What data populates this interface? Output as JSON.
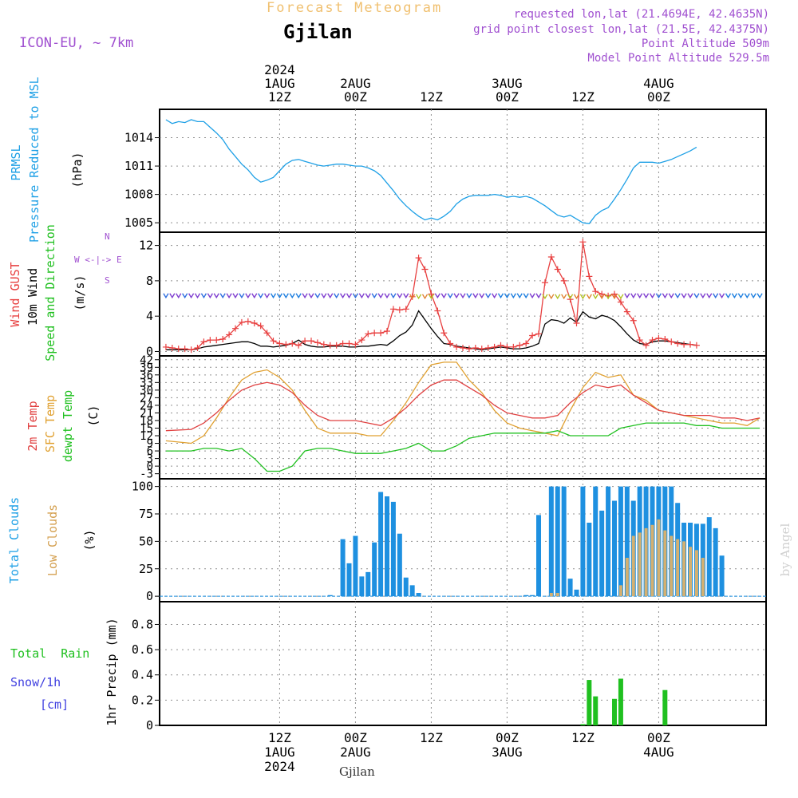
{
  "header": {
    "forecast_title": "Forecast Meteogram",
    "location": "Gjilan",
    "model": "ICON-EU, ~ 7km",
    "requested": "requested lon,lat (21.4694E, 42.4635N)",
    "grid_point": "grid point closest lon,lat (21.5E, 42.4375N)",
    "point_altitude": "Point Altitude 509m",
    "model_altitude": "Model Point Altitude 529.5m",
    "footer_location": "Gjilan",
    "credit": "by Angel"
  },
  "colors": {
    "pressure": "#1ea0e6",
    "gust": "#e84040",
    "wind10m": "#000000",
    "wind_dir": "#20c020",
    "temp2m": "#e04040",
    "sfc_temp": "#e0a030",
    "dewpt": "#20c020",
    "total_clouds": "#1e90e0",
    "low_clouds": "#d4b070",
    "rain": "#20c020",
    "snow": "#4040e0",
    "header_purple": "#a050d0",
    "title_orange": "#f0c070"
  },
  "time_axis": {
    "top_labels": [
      {
        "lines": [
          "2024",
          "1AUG",
          "12Z"
        ]
      },
      {
        "lines": [
          "2AUG",
          "00Z"
        ]
      },
      {
        "lines": [
          "12Z"
        ]
      },
      {
        "lines": [
          "3AUG",
          "00Z"
        ]
      },
      {
        "lines": [
          "12Z"
        ]
      },
      {
        "lines": [
          "4AUG",
          "00Z"
        ]
      }
    ],
    "bottom_labels": [
      {
        "lines": [
          "12Z",
          "1AUG",
          "2024"
        ]
      },
      {
        "lines": [
          "00Z",
          "2AUG"
        ]
      },
      {
        "lines": [
          "12Z"
        ]
      },
      {
        "lines": [
          "00Z",
          "3AUG"
        ]
      },
      {
        "lines": [
          "12Z"
        ]
      },
      {
        "lines": [
          "00Z",
          "4AUG"
        ]
      }
    ]
  },
  "panels": {
    "pressure": {
      "label_main": "PRMSL",
      "label_sub": "Pressure Reduced to MSL",
      "unit": "(hPa)"
    },
    "wind": {
      "label_gust": "Wind GUST",
      "label_10m": "10m Wind",
      "label_dir": "Speed and Direction",
      "unit": "(m/s)",
      "compass": [
        "N",
        "W <-|-> E",
        "S"
      ]
    },
    "temp": {
      "label_2m": "2m Temp",
      "label_sfc": "SFC Temp",
      "label_dew": "dewpt Temp",
      "unit": "(C)"
    },
    "clouds": {
      "label_total": "Total Clouds",
      "label_low": "Low Clouds",
      "unit": "(%)"
    },
    "precip": {
      "label_rain": "Total  Rain",
      "label_snow": "Snow/1h",
      "label_cm": "[cm]",
      "label_axis": "1hr Precip (mm)"
    }
  },
  "chart_data": [
    {
      "type": "line",
      "panel": "pressure",
      "title": "PRMSL Pressure Reduced to MSL",
      "ylabel": "(hPa)",
      "xlim_hours": [
        -19,
        77
      ],
      "ylim": [
        1004,
        1017
      ],
      "yticks": [
        1005,
        1008,
        1011,
        1014
      ],
      "x_hours": [
        -18,
        -17,
        -16,
        -15,
        -14,
        -13,
        -12,
        -11,
        -10,
        -9,
        -8,
        -7,
        -6,
        -5,
        -4,
        -3,
        -2,
        -1,
        0,
        1,
        2,
        3,
        4,
        5,
        6,
        7,
        8,
        9,
        10,
        11,
        12,
        13,
        14,
        15,
        16,
        17,
        18,
        19,
        20,
        21,
        22,
        23,
        24,
        25,
        26,
        27,
        28,
        29,
        30,
        31,
        32,
        33,
        34,
        35,
        36,
        37,
        38,
        39,
        40,
        41,
        42,
        43,
        44,
        45,
        46,
        47,
        48,
        49,
        50,
        51,
        52,
        53,
        54,
        55,
        56,
        57,
        58,
        59,
        60,
        61,
        62,
        63,
        64,
        65,
        66,
        67,
        68,
        69,
        70,
        71,
        72,
        73,
        74,
        75,
        76
      ],
      "series": [
        {
          "values": [
            1015.9,
            1015.5,
            1015.7,
            1015.6,
            1015.9,
            1015.7,
            1015.7,
            1015.1,
            1014.5,
            1013.8,
            1012.8,
            1012,
            1011.2,
            1010.6,
            1009.8,
            1009.3,
            1009.5,
            1009.8,
            1010.5,
            1011.2,
            1011.6,
            1011.7,
            1011.5,
            1011.3,
            1011.1,
            1011,
            1011.1,
            1011.2,
            1011.2,
            1011.1,
            1011,
            1011,
            1010.8,
            1010.5,
            1010,
            1009.2,
            1008.4,
            1007.5,
            1006.8,
            1006.2,
            1005.7,
            1005.3,
            1005.5,
            1005.3,
            1005.7,
            1006.2,
            1007,
            1007.5,
            1007.8,
            1007.9,
            1007.9,
            1007.9,
            1008,
            1007.9,
            1007.7,
            1007.8,
            1007.7,
            1007.8,
            1007.6,
            1007.2,
            1006.8,
            1006.3,
            1005.8,
            1005.6,
            1005.8,
            1005.4,
            1005,
            1004.9,
            1005.8,
            1006.3,
            1006.6,
            1007.5,
            1008.5,
            1009.6,
            1010.8,
            1011.4,
            1011.4,
            1011.4,
            1011.3,
            1011.5,
            1011.7,
            1012,
            1012.3,
            1012.6,
            1013
          ]
        }
      ]
    },
    {
      "type": "line",
      "panel": "wind",
      "title": "Wind GUST / 10m Wind Speed and Direction",
      "ylabel": "(m/s)",
      "xlim_hours": [
        -19,
        77
      ],
      "ylim": [
        -0.5,
        13.5
      ],
      "yticks": [
        0,
        4,
        8,
        12
      ],
      "x_hours": [
        -18,
        -17,
        -16,
        -15,
        -14,
        -13,
        -12,
        -11,
        -10,
        -9,
        -8,
        -7,
        -6,
        -5,
        -4,
        -3,
        -2,
        -1,
        0,
        1,
        2,
        3,
        4,
        5,
        6,
        7,
        8,
        9,
        10,
        11,
        12,
        13,
        14,
        15,
        16,
        17,
        18,
        19,
        20,
        21,
        22,
        23,
        24,
        25,
        26,
        27,
        28,
        29,
        30,
        31,
        32,
        33,
        34,
        35,
        36,
        37,
        38,
        39,
        40,
        41,
        42,
        43,
        44,
        45,
        46,
        47,
        48,
        49,
        50,
        51,
        52,
        53,
        54,
        55,
        56,
        57,
        58,
        59,
        60,
        61,
        62,
        63,
        64,
        65,
        66,
        67,
        68,
        69,
        70,
        71,
        72,
        73,
        74,
        75,
        76
      ],
      "series": [
        {
          "name": "Wind GUST",
          "values": [
            0.5,
            0.4,
            0.3,
            0.3,
            0.2,
            0.4,
            1.1,
            1.3,
            1.3,
            1.4,
            1.9,
            2.6,
            3.3,
            3.4,
            3.2,
            2.9,
            2.1,
            1.2,
            0.9,
            0.8,
            0.9,
            0.7,
            1.2,
            1.2,
            1.0,
            0.8,
            0.7,
            0.7,
            0.9,
            0.9,
            0.8,
            1.3,
            2.0,
            2.1,
            2.1,
            2.3,
            4.8,
            4.7,
            4.8,
            6.2,
            10.6,
            9.3,
            6.5,
            4.6,
            2.1,
            0.9,
            0.5,
            0.4,
            0.3,
            0.4,
            0.3,
            0.4,
            0.5,
            0.7,
            0.5,
            0.5,
            0.7,
            0.9,
            1.8,
            2.0,
            7.8,
            10.7,
            9.3,
            8.0,
            5.9,
            3.2,
            12.4,
            8.5,
            6.8,
            6.5,
            6.3,
            6.5,
            5.6,
            4.5,
            3.5,
            1.3,
            0.7,
            1.3,
            1.5,
            1.4,
            1.1,
            0.9,
            0.8,
            0.8,
            0.7
          ]
        },
        {
          "name": "10m Wind",
          "values": [
            0.2,
            0.2,
            0.2,
            0.2,
            0.2,
            0.3,
            0.5,
            0.6,
            0.7,
            0.8,
            0.9,
            1.0,
            1.1,
            1.1,
            0.9,
            0.6,
            0.6,
            0.5,
            0.6,
            0.7,
            0.9,
            1.3,
            0.8,
            0.6,
            0.5,
            0.5,
            0.6,
            0.6,
            0.6,
            0.5,
            0.5,
            0.6,
            0.6,
            0.7,
            0.8,
            0.7,
            1.2,
            1.8,
            2.2,
            3.0,
            4.6,
            3.6,
            2.6,
            1.7,
            0.9,
            0.8,
            0.6,
            0.5,
            0.4,
            0.3,
            0.2,
            0.3,
            0.4,
            0.5,
            0.4,
            0.3,
            0.3,
            0.4,
            0.6,
            0.9,
            3.1,
            3.6,
            3.5,
            3.2,
            3.8,
            3.3,
            4.5,
            3.9,
            3.7,
            4.1,
            3.9,
            3.5,
            2.8,
            2.0,
            1.3,
            0.9,
            0.8,
            1.1,
            1.2,
            1.2,
            1.1,
            1.0,
            0.9,
            0.8,
            0.7
          ]
        }
      ]
    },
    {
      "type": "line",
      "panel": "temp",
      "title": "2m Temp / SFC Temp / dewpt Temp",
      "ylabel": "(C)",
      "xlim_hours": [
        -19,
        77
      ],
      "ylim": [
        -5,
        43.5
      ],
      "yticks": [
        -3,
        0,
        3,
        6,
        9,
        12,
        15,
        18,
        21,
        24,
        27,
        30,
        33,
        36,
        39,
        42
      ],
      "x_hours": [
        -18,
        -14,
        -12,
        -10,
        -8,
        -6,
        -4,
        -2,
        0,
        2,
        4,
        6,
        8,
        10,
        12,
        14,
        16,
        18,
        20,
        22,
        24,
        26,
        28,
        30,
        32,
        34,
        36,
        38,
        40,
        42,
        44,
        46,
        48,
        50,
        52,
        54,
        56,
        58,
        60,
        62,
        64,
        66,
        68,
        70,
        72,
        74,
        76
      ],
      "series": [
        {
          "name": "2m Temp",
          "values": [
            14,
            14.5,
            17,
            21,
            26,
            30,
            32,
            33,
            32,
            29,
            24,
            20,
            18,
            18,
            18,
            17,
            16,
            19,
            23,
            28,
            32,
            34,
            34,
            31,
            28,
            24,
            21,
            20,
            19,
            19,
            20,
            25,
            29,
            32,
            31,
            32,
            28,
            25,
            22,
            21,
            20,
            20,
            20,
            19,
            19,
            18,
            19
          ]
        },
        {
          "name": "SFC Temp",
          "values": [
            10,
            9,
            12,
            19,
            27,
            34,
            37,
            38,
            35,
            30,
            22,
            15,
            13,
            13,
            13,
            12,
            12,
            18,
            25,
            33,
            40,
            41,
            41,
            34,
            29,
            22,
            17,
            15,
            14,
            13,
            12,
            22,
            31,
            37,
            35,
            36,
            28,
            26,
            22,
            21,
            20,
            19,
            18,
            17,
            17,
            16,
            19
          ]
        },
        {
          "name": "dewpt Temp",
          "values": [
            6,
            6,
            7,
            7,
            6,
            7,
            3,
            -2,
            -2,
            0,
            6,
            7,
            7,
            6,
            5,
            5,
            5,
            6,
            7,
            9,
            6,
            6,
            8,
            11,
            12,
            13,
            13,
            13,
            13,
            13,
            14,
            12,
            12,
            12,
            12,
            15,
            16,
            17,
            17,
            17,
            17,
            16,
            16,
            15,
            15,
            15,
            15
          ]
        }
      ]
    },
    {
      "type": "bar",
      "panel": "clouds",
      "title": "Total Clouds / Low Clouds",
      "ylabel": "(%)",
      "xlim_hours": [
        -19,
        77
      ],
      "ylim": [
        -5,
        107
      ],
      "yticks": [
        0,
        25,
        50,
        75,
        100
      ],
      "x_hours": [
        6,
        8,
        9,
        10,
        11,
        12,
        13,
        14,
        15,
        16,
        17,
        18,
        19,
        20,
        21,
        22,
        37,
        38,
        39,
        40,
        41,
        42,
        43,
        44,
        45,
        46,
        47,
        48,
        49,
        50,
        51,
        52,
        53,
        54,
        55,
        56,
        57,
        58,
        59,
        60,
        61,
        62,
        63,
        64,
        65,
        66,
        67,
        68,
        69,
        70,
        71,
        72,
        73,
        74,
        75,
        76
      ],
      "series": [
        {
          "name": "Total Clouds",
          "values": [
            0,
            1,
            0,
            52,
            30,
            55,
            18,
            22,
            49,
            95,
            91,
            86,
            57,
            17,
            10,
            3,
            0,
            0,
            1,
            1,
            74,
            0,
            100,
            100,
            100,
            16,
            6,
            100,
            67,
            100,
            78,
            100,
            87,
            100,
            100,
            87,
            100,
            100,
            100,
            100,
            100,
            100,
            85,
            67,
            67,
            66,
            66,
            72,
            62,
            37,
            0,
            0,
            0,
            0,
            0,
            0
          ]
        },
        {
          "name": "Low Clouds",
          "values": [
            0,
            0,
            0,
            0,
            0,
            0,
            0,
            0,
            0,
            0,
            0,
            0,
            0,
            0,
            0,
            0,
            0,
            0,
            0,
            0,
            0,
            0,
            3,
            3,
            0,
            0,
            0,
            0,
            0,
            0,
            0,
            0,
            0,
            10,
            35,
            55,
            58,
            62,
            65,
            70,
            60,
            55,
            52,
            50,
            45,
            42,
            35,
            0,
            0,
            0,
            0,
            0,
            0,
            0,
            0,
            0
          ]
        }
      ]
    },
    {
      "type": "bar",
      "panel": "precip",
      "title": "Total Rain / Snow/1h [cm]",
      "ylabel": "1hr Precip (mm)",
      "xlim_hours": [
        -19,
        77
      ],
      "ylim": [
        0,
        0.98
      ],
      "yticks": [
        0,
        0.2,
        0.4,
        0.6,
        0.8
      ],
      "x_hours": [
        48,
        49,
        50,
        51,
        52,
        53,
        54,
        55,
        56,
        57,
        58,
        59,
        60,
        61,
        62,
        63,
        64,
        65,
        66,
        67,
        68,
        69,
        70
      ],
      "series": [
        {
          "name": "Total Rain",
          "values": [
            0.01,
            0.36,
            0.23,
            0,
            0,
            0.21,
            0.37,
            0,
            0,
            0,
            0,
            0,
            0,
            0.28,
            0,
            0,
            0,
            0,
            0,
            0,
            0,
            0,
            0
          ]
        }
      ]
    }
  ]
}
